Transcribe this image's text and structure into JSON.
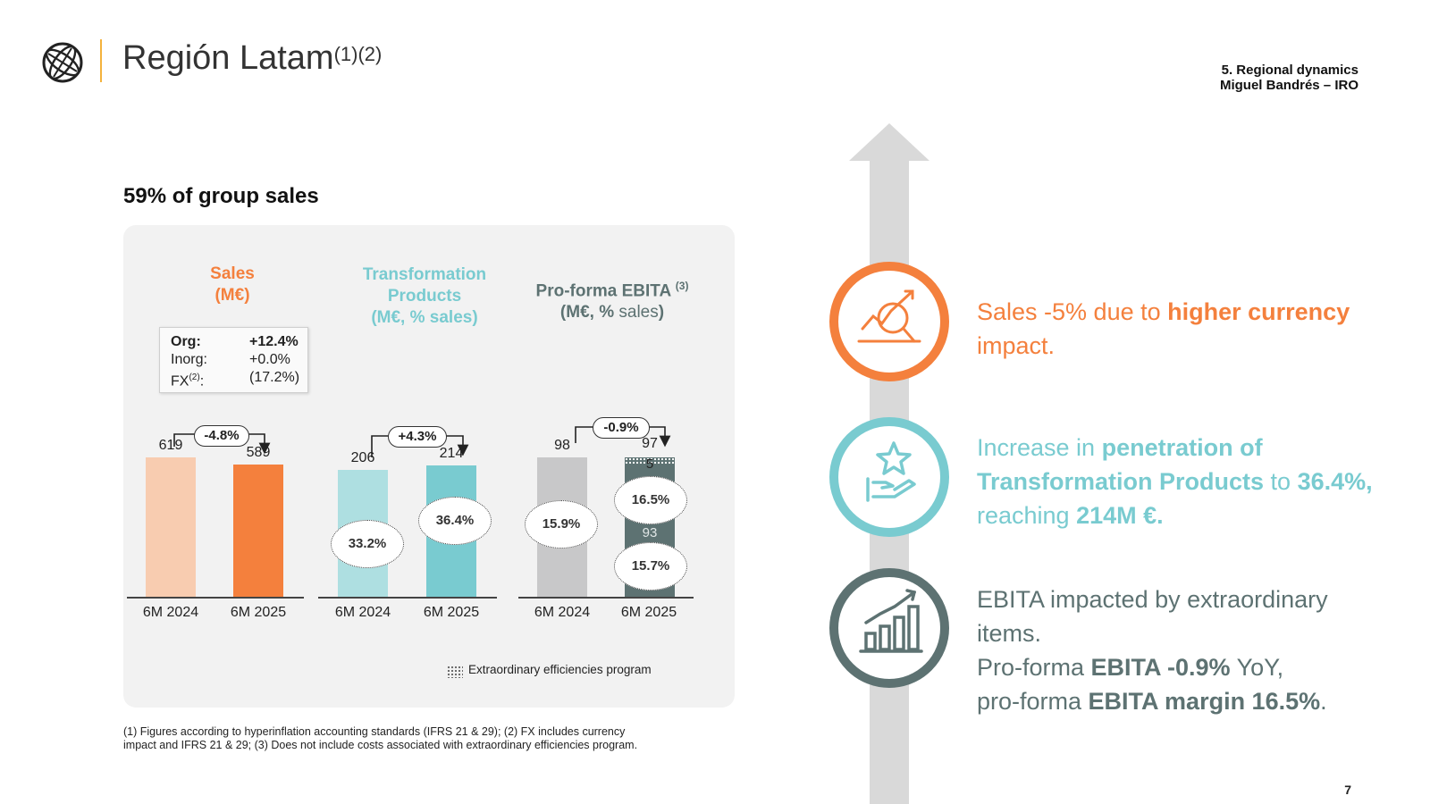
{
  "header": {
    "title": "Región Latam",
    "title_refs": "(1)(2)",
    "section": "5. Regional dynamics",
    "presenter": "Miguel Bandrés – IRO"
  },
  "subtitle": "59% of group sales",
  "growth_box": {
    "rows": [
      {
        "label": "Org:",
        "value": "+12.4%"
      },
      {
        "label": "Inorg:",
        "value": "+0.0%"
      },
      {
        "label": "FX",
        "label_sup": "(2)",
        "label_suffix": ":",
        "value": "(17.2%)"
      }
    ]
  },
  "chart_data": [
    {
      "type": "bar",
      "title": "Sales",
      "subtitle": "(M€)",
      "categories": [
        "6M 2024",
        "6M 2025"
      ],
      "values": [
        619,
        589
      ],
      "change": "-4.8%",
      "colors": [
        "#f8ccb0",
        "#f4803d"
      ]
    },
    {
      "type": "bar",
      "title": "Transformation Products",
      "subtitle": "(M€, % sales)",
      "categories": [
        "6M 2024",
        "6M 2025"
      ],
      "values": [
        206,
        214
      ],
      "pct_sales": [
        "33.2%",
        "36.4%"
      ],
      "change": "+4.3%",
      "colors": [
        "#aedfe1",
        "#79cbd0"
      ]
    },
    {
      "type": "bar",
      "title": "Pro-forma EBITA",
      "title_ref": "(3)",
      "subtitle_bold_1": "(M€, %",
      "subtitle_light": " sales",
      "subtitle_bold_2": ")",
      "categories": [
        "6M 2024",
        "6M 2025"
      ],
      "values": [
        98,
        97
      ],
      "stack_2025": {
        "base": 93,
        "extraordinary": 5
      },
      "margins": [
        "15.9%",
        "16.5%",
        "15.7%"
      ],
      "change": "-0.9%",
      "colors": [
        "#c8c8c9",
        "#5d7272"
      ]
    }
  ],
  "legend": "Extraordinary efficiencies program",
  "footnote": "(1) Figures according to hyperinflation accounting standards (IFRS 21 & 29); (2) FX includes currency impact and IFRS 21 & 29; (3) Does not include costs associated with extraordinary efficiencies program.",
  "highlights": {
    "sales": {
      "t1": "Sales -5% due to ",
      "b1": "higher currency",
      "t2": " impact.",
      "color": "#f4803d"
    },
    "tp": {
      "t1": "Increase in ",
      "b1": "penetration of Transformation Products",
      "t2": " to ",
      "b2": "36.4%,",
      "t3": " reaching ",
      "b3": "214M €.",
      "color": "#79cbd0"
    },
    "ebita": {
      "t1": "EBITA impacted by extraordinary items.",
      "t2": "Pro-forma ",
      "b1": "EBITA -0.9%",
      "t3": " YoY,",
      "t4": "pro-forma ",
      "b2": "EBITA margin 16.5%",
      "t5": ".",
      "color": "#5d7272"
    }
  },
  "page_number": "7"
}
